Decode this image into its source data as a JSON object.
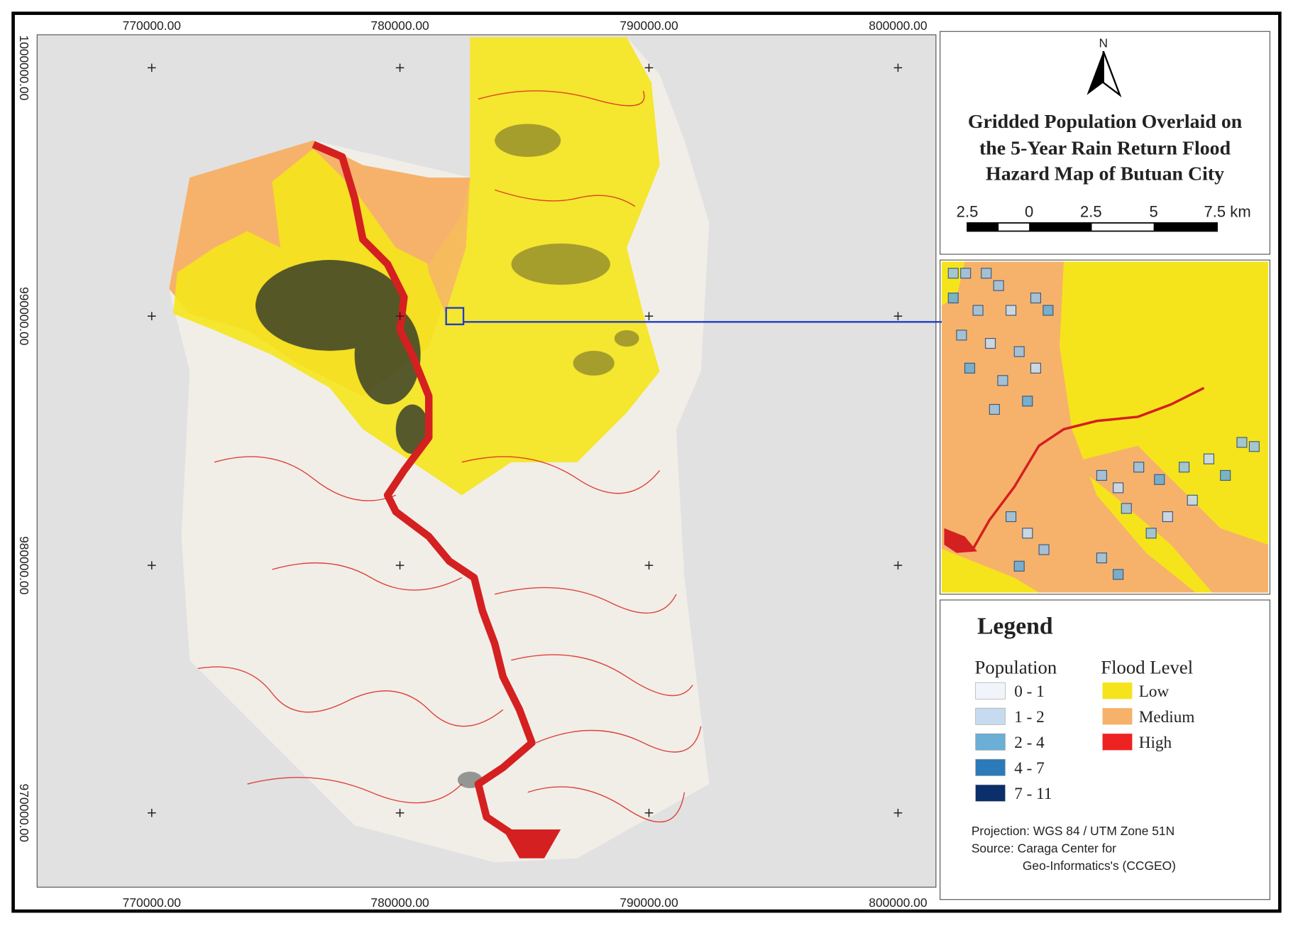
{
  "map": {
    "x_labels": [
      "770000.00",
      "780000.00",
      "790000.00",
      "800000.00"
    ],
    "y_labels": [
      "1000000.00",
      "990000.00",
      "980000.00",
      "970000.00"
    ],
    "north": "N",
    "title": [
      "Gridded Population Overlaid on",
      "the 5-Year Rain Return Flood",
      "Hazard Map of Butuan City"
    ],
    "scale_bar": {
      "labels": [
        "2.5",
        "0",
        "2.5",
        "5",
        "7.5 km"
      ]
    },
    "legend": {
      "title": "Legend",
      "population": {
        "title": "Population",
        "items": [
          {
            "label": "0 - 1",
            "color": "#f1f5fb"
          },
          {
            "label": "1 - 2",
            "color": "#c6dbef"
          },
          {
            "label": "2 - 4",
            "color": "#6baed6"
          },
          {
            "label": "4 - 7",
            "color": "#2b7bba"
          },
          {
            "label": "7 - 11",
            "color": "#0b2f6b"
          }
        ]
      },
      "flood_level": {
        "title": "Flood Level",
        "items": [
          {
            "label": "Low",
            "color": "#f5e41c"
          },
          {
            "label": "Medium",
            "color": "#f6b26b"
          },
          {
            "label": "High",
            "color": "#ee2222"
          }
        ]
      }
    },
    "projection": "Projection: WGS 84 / UTM Zone 51N",
    "source": [
      "Source: Caraga Center for",
      "Geo-Informatics's (CCGEO)"
    ]
  }
}
